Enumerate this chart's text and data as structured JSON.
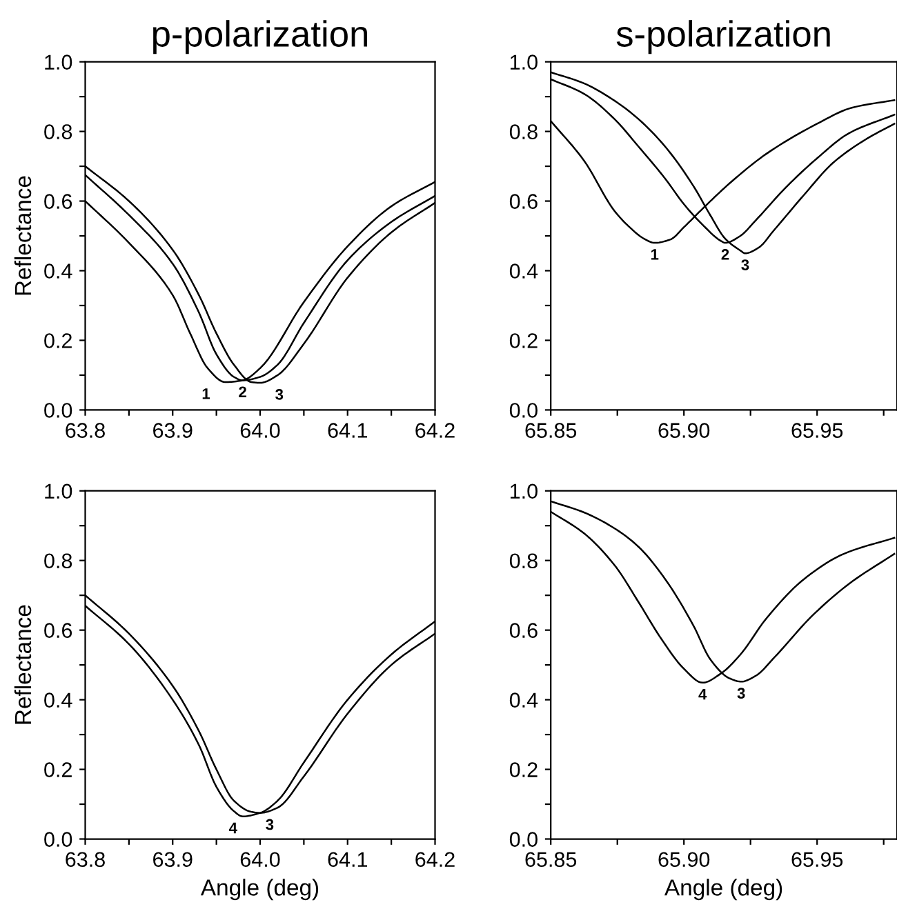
{
  "chart_data": [
    {
      "type": "line",
      "title": "p-polarization",
      "ylabel": "Reflectance",
      "xlim": [
        63.8,
        64.2
      ],
      "ylim": [
        0,
        1
      ],
      "xticks": [
        63.8,
        {
          "value": 63.85,
          "label": null
        },
        63.9,
        {
          "value": 63.95,
          "label": null
        },
        {
          "value": 64.0,
          "label": "64.0"
        },
        {
          "value": 64.05,
          "label": null
        },
        64.1,
        {
          "value": 64.15,
          "label": null
        },
        64.2
      ],
      "yticks": [
        {
          "value": 0,
          "label": "0.0"
        },
        {
          "value": 0.1,
          "label": null
        },
        0.2,
        {
          "value": 0.3,
          "label": null
        },
        0.4,
        {
          "value": 0.5,
          "label": null
        },
        0.6,
        {
          "value": 0.7,
          "label": null
        },
        0.8,
        {
          "value": 0.9,
          "label": null
        },
        {
          "value": 1,
          "label": "1.0"
        }
      ],
      "series": [
        {
          "name": "1",
          "color": "#000000",
          "x": [
            63.8,
            63.85,
            63.9,
            63.92,
            63.94,
            63.96,
            63.98,
            64.0,
            64.05,
            64.1,
            64.15,
            64.2
          ],
          "values": [
            0.6,
            0.48,
            0.33,
            0.22,
            0.12,
            0.08,
            0.085,
            0.12,
            0.31,
            0.47,
            0.585,
            0.655
          ]
        },
        {
          "name": "2",
          "color": "#000000",
          "x": [
            63.8,
            63.85,
            63.9,
            63.93,
            63.95,
            63.97,
            63.98,
            64.0,
            64.02,
            64.05,
            64.1,
            64.15,
            64.2
          ],
          "values": [
            0.675,
            0.56,
            0.42,
            0.28,
            0.16,
            0.095,
            0.085,
            0.095,
            0.13,
            0.25,
            0.43,
            0.54,
            0.615
          ]
        },
        {
          "name": "3",
          "color": "#000000",
          "x": [
            63.8,
            63.85,
            63.9,
            63.93,
            63.95,
            63.97,
            63.99,
            64.0,
            64.02,
            64.05,
            64.1,
            64.15,
            64.2
          ],
          "values": [
            0.7,
            0.6,
            0.46,
            0.33,
            0.22,
            0.13,
            0.08,
            0.078,
            0.1,
            0.19,
            0.38,
            0.51,
            0.595
          ]
        }
      ]
    },
    {
      "type": "line",
      "title": "s-polarization",
      "xlim": [
        65.85,
        65.98
      ],
      "ylim": [
        0,
        1
      ],
      "xticks": [
        65.85,
        {
          "value": 65.875,
          "label": null
        },
        {
          "value": 65.9,
          "label": "65.90"
        },
        {
          "value": 65.925,
          "label": null
        },
        65.95,
        {
          "value": 65.975,
          "label": null
        }
      ],
      "yticks": [
        {
          "value": 0,
          "label": "0.0"
        },
        {
          "value": 0.1,
          "label": null
        },
        0.2,
        {
          "value": 0.3,
          "label": null
        },
        0.4,
        {
          "value": 0.5,
          "label": null
        },
        0.6,
        {
          "value": 0.7,
          "label": null
        },
        0.8,
        {
          "value": 0.9,
          "label": null
        },
        {
          "value": 1,
          "label": "1.0"
        }
      ],
      "series": [
        {
          "name": "1",
          "color": "#000000",
          "x": [
            65.85,
            65.8625,
            65.874,
            65.8796,
            65.885,
            65.889,
            65.895,
            65.9,
            65.907,
            65.917,
            65.931,
            65.95,
            65.963,
            65.979
          ],
          "values": [
            0.83,
            0.716,
            0.571,
            0.525,
            0.492,
            0.48,
            0.49,
            0.525,
            0.578,
            0.65,
            0.736,
            0.822,
            0.868,
            0.89
          ]
        },
        {
          "name": "2",
          "color": "#000000",
          "x": [
            65.85,
            65.8625,
            65.874,
            65.883,
            65.893,
            65.9,
            65.907,
            65.914,
            65.9155,
            65.921,
            65.927,
            65.938,
            65.95,
            65.962,
            65.979
          ],
          "values": [
            0.95,
            0.908,
            0.835,
            0.756,
            0.664,
            0.591,
            0.532,
            0.485,
            0.48,
            0.499,
            0.545,
            0.637,
            0.723,
            0.795,
            0.848
          ]
        },
        {
          "name": "3",
          "color": "#000000",
          "x": [
            65.85,
            65.8625,
            65.874,
            65.883,
            65.893,
            65.9035,
            65.91,
            65.9155,
            65.921,
            65.923,
            65.928,
            65.934,
            65.945,
            65.956,
            65.968,
            65.979
          ],
          "values": [
            0.97,
            0.938,
            0.888,
            0.835,
            0.756,
            0.644,
            0.558,
            0.492,
            0.459,
            0.45,
            0.466,
            0.518,
            0.617,
            0.71,
            0.776,
            0.822
          ]
        }
      ]
    },
    {
      "type": "line",
      "xlabel": "Angle (deg)",
      "ylabel": "Reflectance",
      "xlim": [
        63.8,
        64.2
      ],
      "ylim": [
        0,
        1
      ],
      "xticks": [
        63.8,
        {
          "value": 63.85,
          "label": null
        },
        63.9,
        {
          "value": 63.95,
          "label": null
        },
        {
          "value": 64.0,
          "label": "64.0"
        },
        {
          "value": 64.05,
          "label": null
        },
        64.1,
        {
          "value": 64.15,
          "label": null
        },
        64.2
      ],
      "yticks": [
        {
          "value": 0,
          "label": "0.0"
        },
        {
          "value": 0.1,
          "label": null
        },
        0.2,
        {
          "value": 0.3,
          "label": null
        },
        0.4,
        {
          "value": 0.5,
          "label": null
        },
        0.6,
        {
          "value": 0.7,
          "label": null
        },
        0.8,
        {
          "value": 0.9,
          "label": null
        },
        {
          "value": 1,
          "label": "1.0"
        }
      ],
      "series": [
        {
          "name": "4",
          "color": "#000000",
          "x": [
            63.8,
            63.85,
            63.9,
            63.93,
            63.95,
            63.97,
            63.98,
            64.0,
            64.02,
            64.05,
            64.1,
            64.15,
            64.2
          ],
          "values": [
            0.67,
            0.56,
            0.4,
            0.27,
            0.15,
            0.08,
            0.065,
            0.075,
            0.11,
            0.22,
            0.4,
            0.53,
            0.625
          ]
        },
        {
          "name": "3",
          "color": "#000000",
          "x": [
            63.8,
            63.85,
            63.9,
            63.93,
            63.95,
            63.97,
            63.99,
            64.0,
            64.02,
            64.05,
            64.1,
            64.15,
            64.2
          ],
          "values": [
            0.7,
            0.59,
            0.44,
            0.31,
            0.2,
            0.11,
            0.078,
            0.075,
            0.09,
            0.18,
            0.36,
            0.5,
            0.59
          ]
        }
      ]
    },
    {
      "type": "line",
      "xlabel": "Angle (deg)",
      "xlim": [
        65.85,
        65.98
      ],
      "ylim": [
        0,
        1
      ],
      "xticks": [
        65.85,
        {
          "value": 65.875,
          "label": null
        },
        {
          "value": 65.9,
          "label": "65.90"
        },
        {
          "value": 65.925,
          "label": null
        },
        65.95,
        {
          "value": 65.975,
          "label": null
        }
      ],
      "yticks": [
        {
          "value": 0,
          "label": "0.0"
        },
        {
          "value": 0.1,
          "label": null
        },
        0.2,
        {
          "value": 0.3,
          "label": null
        },
        0.4,
        {
          "value": 0.5,
          "label": null
        },
        0.6,
        {
          "value": 0.7,
          "label": null
        },
        0.8,
        {
          "value": 0.9,
          "label": null
        },
        {
          "value": 1,
          "label": "1.0"
        }
      ],
      "series": [
        {
          "name": "4",
          "color": "#000000",
          "x": [
            65.85,
            65.8625,
            65.874,
            65.883,
            65.8915,
            65.9,
            65.907,
            65.914,
            65.921,
            65.931,
            65.945,
            65.96,
            65.979
          ],
          "values": [
            0.94,
            0.878,
            0.786,
            0.68,
            0.575,
            0.489,
            0.449,
            0.476,
            0.528,
            0.634,
            0.746,
            0.819,
            0.865
          ]
        },
        {
          "name": "3",
          "color": "#000000",
          "x": [
            65.85,
            65.8625,
            65.874,
            65.883,
            65.893,
            65.9035,
            65.91,
            65.917,
            65.9215,
            65.927,
            65.934,
            65.948,
            65.962,
            65.979
          ],
          "values": [
            0.97,
            0.938,
            0.892,
            0.839,
            0.746,
            0.614,
            0.515,
            0.462,
            0.452,
            0.469,
            0.522,
            0.64,
            0.733,
            0.819
          ]
        }
      ]
    }
  ]
}
